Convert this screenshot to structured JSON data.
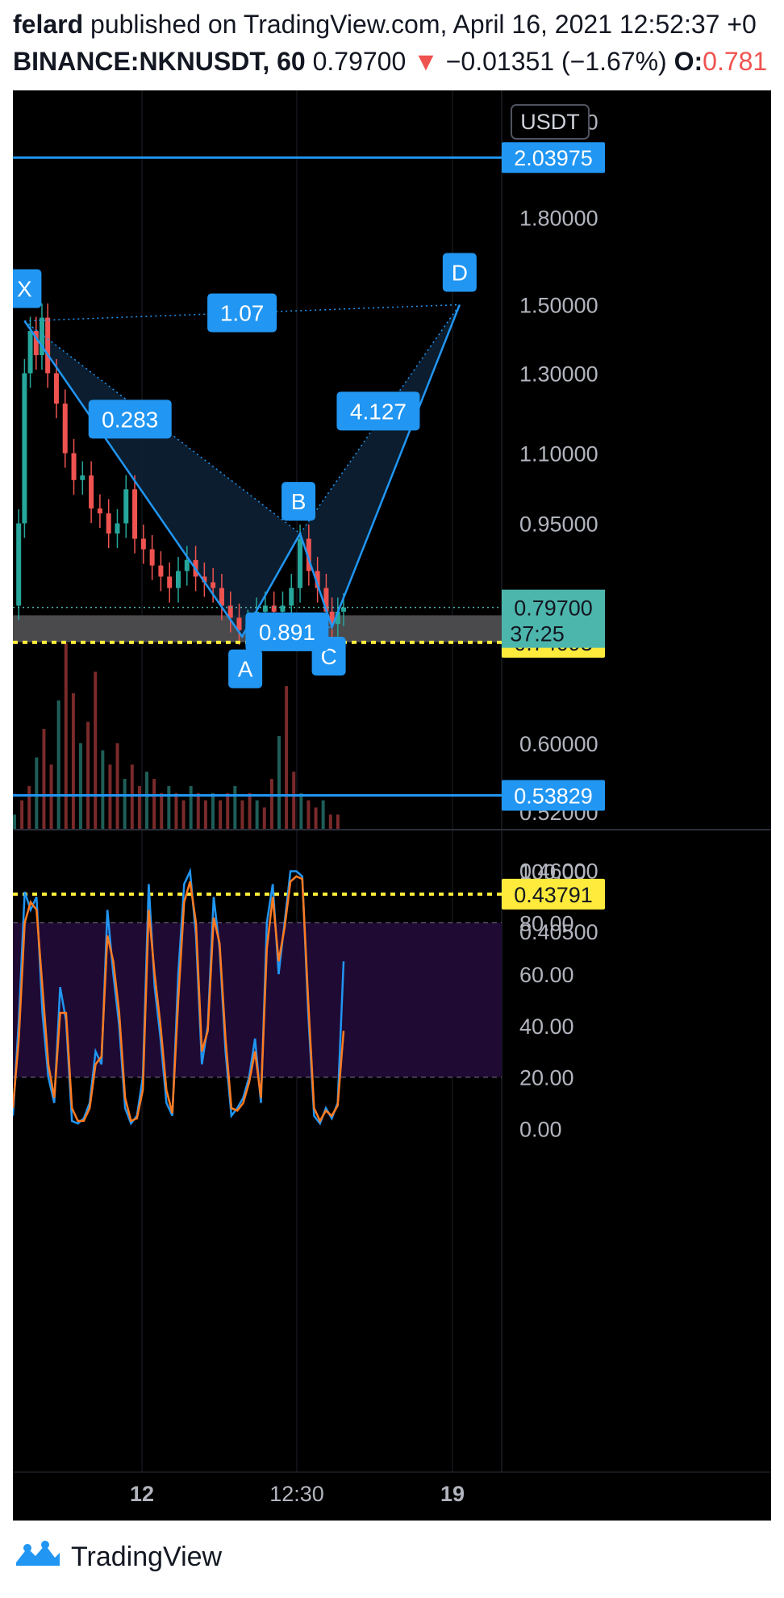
{
  "header": {
    "author": "felard",
    "published_text": "published on TradingView.com, April 16, 2021 12:52:37 +0",
    "symbol_interval": "BINANCE:NKNUSDT, 60",
    "last_price": "0.79700",
    "change_arrow": "▼",
    "change": "−0.01351 (−1.67%)",
    "open_label": "O:",
    "open_value": "0.781"
  },
  "colors": {
    "background": "#000000",
    "accent_blue": "#2196f3",
    "pattern_fill": "#0d2236",
    "up_candle": "#26a69a",
    "down_candle": "#ef5350",
    "yellow_line": "#ffeb3b",
    "last_price_badge": "#4db6ac",
    "stoch_band": "#1f0a33",
    "stoch_k": "#2196f3",
    "stoch_d": "#ff7a20"
  },
  "chart_data": [
    {
      "type": "line",
      "subtype": "candlestick_with_harmonic_pattern",
      "symbol": "BINANCE:NKNUSDT",
      "interval": "60",
      "currency_label": "USDT",
      "y_axis_ticks": [
        "2.20000",
        "1.80000",
        "1.50000",
        "1.30000",
        "1.10000",
        "0.95000",
        "0.60000",
        "0.52000",
        "0.46000",
        "0.40500"
      ],
      "x_axis_ticks": [
        "12",
        "12:30",
        "19"
      ],
      "y_scale": "log",
      "ylim": [
        0.38,
        2.3
      ],
      "horizontal_levels": [
        {
          "label": "2.03975",
          "value": 2.03975,
          "color": "#2196f3",
          "style": "solid"
        },
        {
          "label": "0.53829",
          "value": 0.53829,
          "color": "#2196f3",
          "style": "solid"
        },
        {
          "label": "0.74093",
          "value": 0.74093,
          "color": "#ffeb3b",
          "style": "dotted"
        },
        {
          "label": "0.43791",
          "value": 0.43791,
          "color": "#ffeb3b",
          "style": "dotted"
        }
      ],
      "last_price": {
        "label": "0.79700",
        "value": 0.797,
        "countdown": "37:25"
      },
      "pattern_points": [
        {
          "label": "X",
          "t": 4,
          "price": 1.45
        },
        {
          "label": "A",
          "t": 79,
          "price": 0.75
        },
        {
          "label": "B",
          "t": 99,
          "price": 0.93
        },
        {
          "label": "C",
          "t": 110,
          "price": 0.765
        },
        {
          "label": "D",
          "t": 154,
          "price": 1.5
        }
      ],
      "pattern_ratios": [
        {
          "label": "1.07",
          "between": "X-D"
        },
        {
          "label": "0.283",
          "between": "X-B"
        },
        {
          "label": "0.891",
          "between": "A-C"
        },
        {
          "label": "4.127",
          "between": "B-D"
        }
      ],
      "price_series": [
        [
          0,
          0.8
        ],
        [
          2,
          0.95
        ],
        [
          4,
          1.3
        ],
        [
          6,
          1.42
        ],
        [
          8,
          1.35
        ],
        [
          10,
          1.46
        ],
        [
          12,
          1.3
        ],
        [
          15,
          1.22
        ],
        [
          18,
          1.1
        ],
        [
          21,
          1.04
        ],
        [
          24,
          1.05
        ],
        [
          27,
          0.98
        ],
        [
          30,
          0.97
        ],
        [
          33,
          0.93
        ],
        [
          36,
          0.95
        ],
        [
          39,
          1.02
        ],
        [
          42,
          0.92
        ],
        [
          45,
          0.9
        ],
        [
          48,
          0.87
        ],
        [
          51,
          0.85
        ],
        [
          54,
          0.83
        ],
        [
          57,
          0.86
        ],
        [
          60,
          0.88
        ],
        [
          63,
          0.85
        ],
        [
          66,
          0.84
        ],
        [
          69,
          0.83
        ],
        [
          72,
          0.8
        ],
        [
          75,
          0.78
        ],
        [
          78,
          0.76
        ],
        [
          81,
          0.77
        ],
        [
          84,
          0.79
        ],
        [
          87,
          0.8
        ],
        [
          90,
          0.79
        ],
        [
          93,
          0.8
        ],
        [
          96,
          0.83
        ],
        [
          99,
          0.92
        ],
        [
          102,
          0.86
        ],
        [
          105,
          0.83
        ],
        [
          108,
          0.79
        ],
        [
          110,
          0.77
        ],
        [
          112,
          0.79
        ],
        [
          114,
          0.797
        ]
      ],
      "volume_series": [
        2,
        4,
        6,
        10,
        14,
        9,
        18,
        26,
        19,
        12,
        15,
        22,
        11,
        9,
        12,
        7,
        9,
        6,
        8,
        7,
        5,
        6,
        5,
        4,
        6,
        5,
        4,
        5,
        4,
        5,
        6,
        4,
        5,
        4,
        3,
        7,
        13,
        20,
        8,
        5,
        4,
        3,
        4,
        2,
        2
      ]
    },
    {
      "type": "line",
      "subtype": "stochastic_oscillator",
      "y_axis_ticks": [
        "100.00",
        "80.00",
        "60.00",
        "40.00",
        "20.00",
        "0.00"
      ],
      "ylim": [
        -8,
        108
      ],
      "band": [
        20,
        80
      ],
      "series": [
        {
          "key": "k",
          "color": "#2196f3",
          "values": [
            5,
            42,
            92,
            85,
            90,
            45,
            20,
            10,
            55,
            42,
            3,
            2,
            4,
            10,
            30,
            25,
            85,
            60,
            40,
            8,
            2,
            5,
            20,
            95,
            55,
            35,
            10,
            5,
            60,
            95,
            100,
            75,
            25,
            40,
            90,
            70,
            30,
            5,
            8,
            12,
            20,
            35,
            10,
            80,
            95,
            60,
            80,
            100,
            100,
            98,
            45,
            5,
            2,
            8,
            4,
            10,
            65
          ]
        },
        {
          "key": "d",
          "color": "#ff7a20",
          "values": [
            8,
            35,
            80,
            88,
            85,
            55,
            25,
            12,
            45,
            45,
            8,
            3,
            3,
            8,
            25,
            28,
            75,
            65,
            45,
            12,
            3,
            4,
            15,
            85,
            60,
            40,
            15,
            6,
            50,
            88,
            96,
            80,
            30,
            38,
            82,
            72,
            35,
            8,
            7,
            10,
            18,
            30,
            12,
            70,
            90,
            65,
            78,
            96,
            98,
            97,
            50,
            8,
            3,
            7,
            5,
            9,
            38
          ]
        }
      ]
    }
  ],
  "footer": {
    "brand": "TradingView"
  }
}
